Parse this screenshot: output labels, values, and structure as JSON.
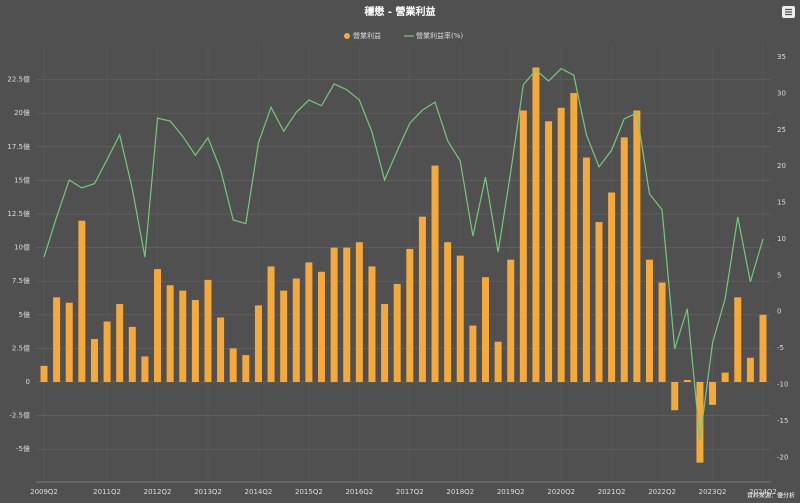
{
  "chart_data": {
    "type": "bar_line",
    "title": "穩懋 - 營業利益",
    "source": "資料來源：優分析",
    "categories": [
      "2009Q2",
      null,
      null,
      null,
      null,
      "2011Q2",
      null,
      null,
      null,
      "2012Q2",
      null,
      null,
      null,
      "2013Q2",
      null,
      null,
      null,
      "2014Q2",
      null,
      null,
      null,
      "2015Q2",
      null,
      null,
      null,
      "2016Q2",
      null,
      null,
      null,
      "2017Q2",
      null,
      null,
      null,
      "2018Q2",
      null,
      null,
      null,
      "2019Q2",
      null,
      null,
      null,
      "2020Q2",
      null,
      null,
      null,
      "2021Q2",
      null,
      null,
      null,
      "2022Q2",
      null,
      null,
      null,
      "2023Q2",
      null,
      null,
      null,
      "2024Q2"
    ],
    "series": [
      {
        "name": "營業利益",
        "type": "bar",
        "axis": "y",
        "color": "#f5a93a",
        "values": [
          1.2,
          6.3,
          5.9,
          12.0,
          3.2,
          4.5,
          5.8,
          4.1,
          1.9,
          8.4,
          7.2,
          6.8,
          6.1,
          7.6,
          4.8,
          2.5,
          2.0,
          5.7,
          8.6,
          6.8,
          7.7,
          8.9,
          8.2,
          10.0,
          10.0,
          10.4,
          8.6,
          5.8,
          7.3,
          9.9,
          12.3,
          16.1,
          10.4,
          9.4,
          4.2,
          7.8,
          3.0,
          9.1,
          20.2,
          23.4,
          19.4,
          20.4,
          21.5,
          16.7,
          11.9,
          14.1,
          18.2,
          20.2,
          9.1,
          7.4,
          -2.1,
          0.15,
          -6.0,
          -1.7,
          0.7,
          6.3,
          1.8,
          5.0
        ]
      },
      {
        "name": "營業利益率(%)",
        "type": "line",
        "axis": "y2",
        "color": "#74c97a",
        "values": [
          7.5,
          13.0,
          18.1,
          17.0,
          17.6,
          20.9,
          24.3,
          16.9,
          7.5,
          26.6,
          26.2,
          24.1,
          21.5,
          23.9,
          19.5,
          12.6,
          12.1,
          23.2,
          28.1,
          24.8,
          27.4,
          29.1,
          28.3,
          31.3,
          30.5,
          29.1,
          24.7,
          18.1,
          22.1,
          25.9,
          27.7,
          28.8,
          23.5,
          20.7,
          10.4,
          18.5,
          8.2,
          19.2,
          31.2,
          33.2,
          31.7,
          33.4,
          32.5,
          24.3,
          19.9,
          22.2,
          26.5,
          27.3,
          16.2,
          14.0,
          -5.1,
          0.4,
          -17.6,
          -4.3,
          1.8,
          13.0,
          4.1,
          10.0
        ]
      }
    ],
    "ylim": [
      -7.44,
      24.18
    ],
    "yticks": [
      {
        "value": -5,
        "label": "-5億"
      },
      {
        "value": -2.5,
        "label": "-2.5億"
      },
      0,
      {
        "value": 2.5,
        "label": "2.5億"
      },
      {
        "value": 5,
        "label": "5億"
      },
      {
        "value": 7.5,
        "label": "7.5億"
      },
      {
        "value": 10,
        "label": "10億"
      },
      {
        "value": 12.5,
        "label": "12.5億"
      },
      {
        "value": 15,
        "label": "15億"
      },
      {
        "value": 17.5,
        "label": "17.5億"
      },
      {
        "value": 20,
        "label": "20億"
      },
      {
        "value": 22.5,
        "label": "22.5億"
      }
    ],
    "y2lim": [
      -23.4,
      35
    ],
    "y2ticks": [
      -20,
      -15,
      -10,
      -5,
      0,
      5,
      10,
      15,
      20,
      25,
      30,
      35
    ],
    "grid": true
  }
}
